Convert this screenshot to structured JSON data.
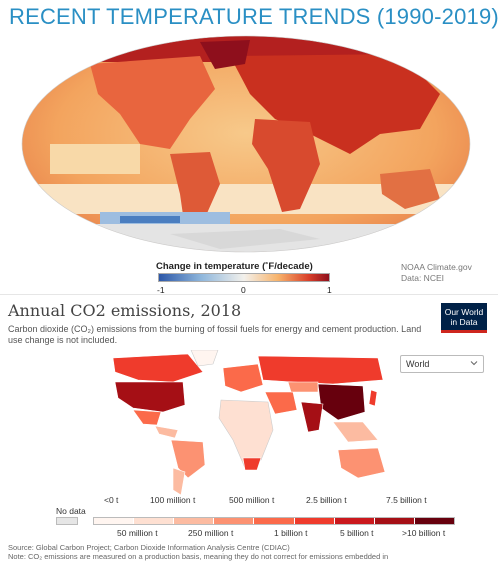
{
  "temperature": {
    "title": "RECENT TEMPERATURE TRENDS (1990-2019)",
    "legend_title": "Change in temperature (˚F/decade)",
    "legend_ticks": [
      "-1",
      "0",
      "1"
    ],
    "source_line1": "NOAA Climate.gov",
    "source_line2": "Data: NCEI",
    "colors": {
      "cool": "#2c57a8",
      "neutral": "#f3f1ec",
      "warm": "#f7b36b",
      "hot": "#d9402b",
      "hottest": "#8e0f1c",
      "ice": "#e4e4e4"
    }
  },
  "emissions": {
    "title": "Annual CO2 emissions, 2018",
    "subtitle": "Carbon dioxide (CO₂) emissions from the burning of fossil fuels for energy and cement production. Land use change is not included.",
    "logo_line1": "Our World",
    "logo_line2": "in Data",
    "region_selected": "World",
    "legend": {
      "no_data": "No data",
      "top_labels": [
        "<0 t",
        "100 million t",
        "500 million t",
        "2.5 billion t",
        "7.5 billion t"
      ],
      "bottom_labels": [
        "50 million t",
        "250 million t",
        "1 billion t",
        "5 billion t",
        ">10 billion t"
      ],
      "scale_colors": [
        "#fff5f0",
        "#fee0d2",
        "#fcbba1",
        "#fc9272",
        "#fb6a4a",
        "#ef3b2c",
        "#cb181d",
        "#a50f15",
        "#67000d"
      ]
    },
    "source": "Source: Global Carbon Project; Carbon Dioxide Information Analysis Centre (CDIAC)",
    "note": "Note: CO₂ emissions are measured on a production basis, meaning they do not correct for emissions embedded in",
    "country_colors": {
      "usa": "#a50f15",
      "canada": "#ef3b2c",
      "russia": "#ef3b2c",
      "china": "#67000d",
      "india": "#a50f15",
      "brazil": "#fc9272",
      "australia": "#fc9272",
      "europe": "#fb6a4a",
      "africa": "#fee0d2",
      "middle_east": "#fb6a4a",
      "latin_america": "#fcbba1",
      "japan": "#ef3b2c",
      "southeast_asia": "#fcbba1",
      "nodata": "#e6e6e6"
    }
  }
}
